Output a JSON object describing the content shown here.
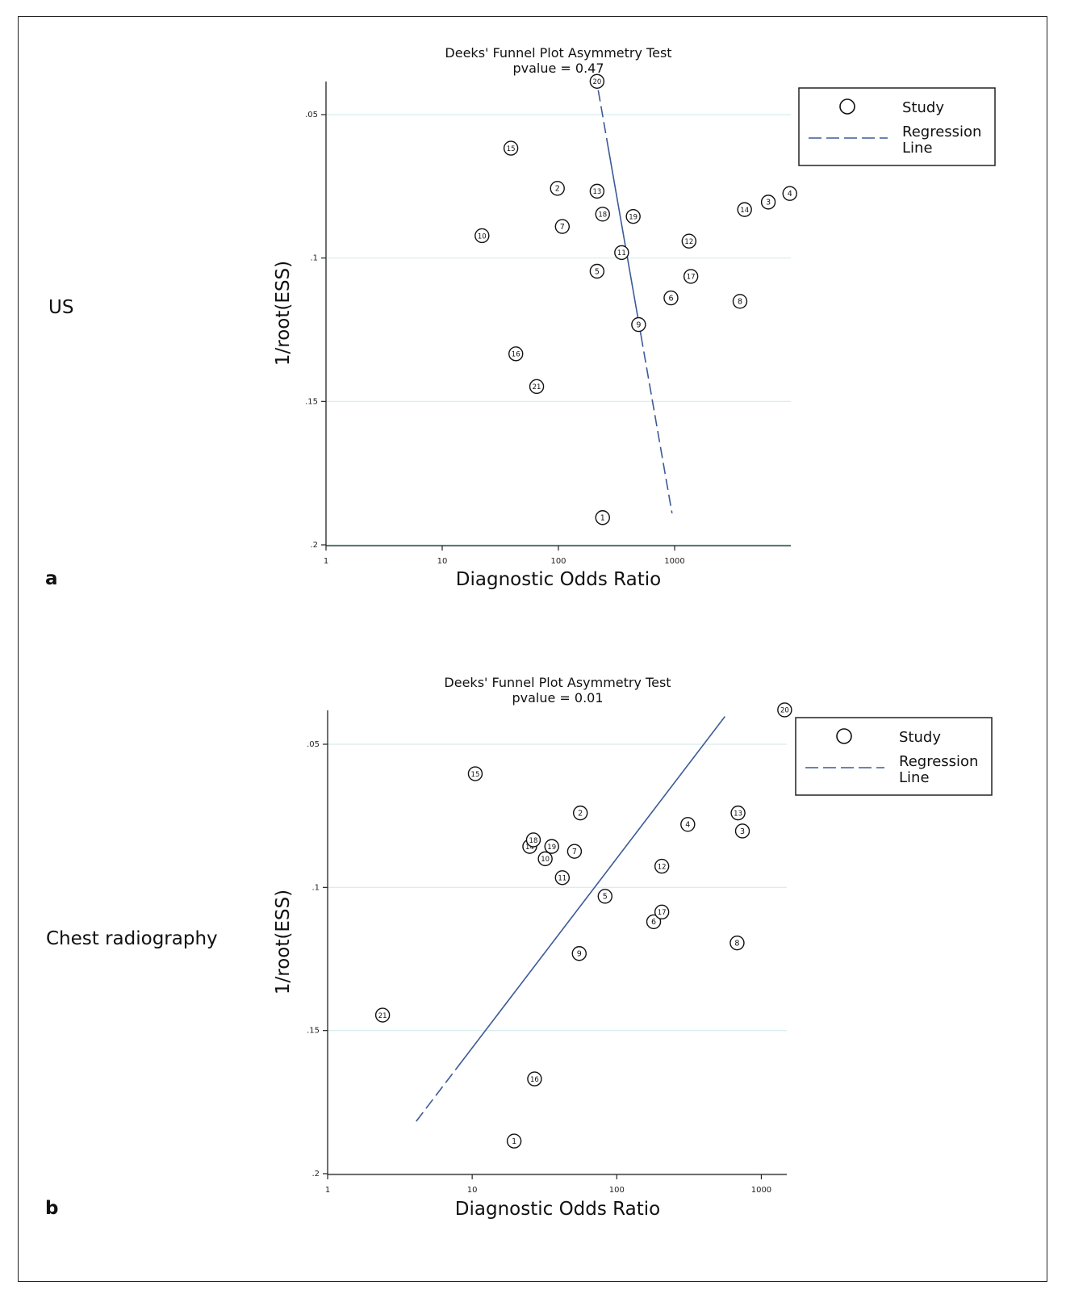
{
  "panels": [
    {
      "side_label": "US",
      "panel_letter": "a",
      "legend": {
        "marker_label": "Study",
        "line_label_1": "Regression",
        "line_label_2": "Line"
      },
      "chart_data": {
        "type": "scatter",
        "title": "Deeks' Funnel Plot Asymmetry Test",
        "subtitle": "pvalue =  0.47",
        "xlabel": "Diagnostic Odds Ratio",
        "ylabel": "1/root(ESS)",
        "x_scale": "log",
        "xlim": [
          1,
          10000
        ],
        "ylim": [
          0.2,
          0.038
        ],
        "y_inverted": true,
        "x_ticks": [
          1,
          10,
          100,
          1000
        ],
        "x_tick_labels": [
          "1",
          "10",
          "100",
          "1000"
        ],
        "y_ticks": [
          0.05,
          0.1,
          0.15,
          0.2
        ],
        "y_tick_labels": [
          ".05",
          ".1",
          ".15",
          ".2"
        ],
        "grid": "horizontal",
        "legend_position": "top-right",
        "points": [
          {
            "label": "1",
            "x": 240,
            "y": 0.1905
          },
          {
            "label": "2",
            "x": 98,
            "y": 0.0757
          },
          {
            "label": "3",
            "x": 6400,
            "y": 0.0805
          },
          {
            "label": "4",
            "x": 9800,
            "y": 0.0775
          },
          {
            "label": "5",
            "x": 215,
            "y": 0.1046
          },
          {
            "label": "6",
            "x": 930,
            "y": 0.1139
          },
          {
            "label": "7",
            "x": 108,
            "y": 0.089
          },
          {
            "label": "8",
            "x": 3650,
            "y": 0.1151
          },
          {
            "label": "9",
            "x": 490,
            "y": 0.1232
          },
          {
            "label": "10",
            "x": 22,
            "y": 0.0922
          },
          {
            "label": "11",
            "x": 350,
            "y": 0.0981
          },
          {
            "label": "12",
            "x": 1330,
            "y": 0.0941
          },
          {
            "label": "13",
            "x": 215,
            "y": 0.0767
          },
          {
            "label": "14",
            "x": 4000,
            "y": 0.0831
          },
          {
            "label": "15",
            "x": 39,
            "y": 0.0617
          },
          {
            "label": "16",
            "x": 43,
            "y": 0.1334
          },
          {
            "label": "17",
            "x": 1380,
            "y": 0.1064
          },
          {
            "label": "18",
            "x": 240,
            "y": 0.0847
          },
          {
            "label": "19",
            "x": 440,
            "y": 0.0855
          },
          {
            "label": "20",
            "x": 215,
            "y": 0.0384
          },
          {
            "label": "21",
            "x": 65,
            "y": 0.1448
          }
        ],
        "regression_line": {
          "x": [
            220,
            950
          ],
          "y": [
            0.0415,
            0.189
          ]
        }
      }
    },
    {
      "side_label": "Chest radiography",
      "panel_letter": "b",
      "legend": {
        "marker_label": "Study",
        "line_label_1": "Regression",
        "line_label_2": "Line"
      },
      "chart_data": {
        "type": "scatter",
        "title": "Deeks' Funnel Plot Asymmetry Test",
        "subtitle": "pvalue =  0.01",
        "xlabel": "Diagnostic Odds Ratio",
        "ylabel": "1/root(ESS)",
        "x_scale": "log",
        "xlim": [
          1,
          1500
        ],
        "ylim": [
          0.2,
          0.038
        ],
        "y_inverted": true,
        "x_ticks": [
          1,
          10,
          100,
          1000
        ],
        "x_tick_labels": [
          "1",
          "10",
          "100",
          "1000"
        ],
        "y_ticks": [
          0.05,
          0.1,
          0.15,
          0.2
        ],
        "y_tick_labels": [
          ".05",
          ".1",
          ".15",
          ".2"
        ],
        "grid": "horizontal",
        "legend_position": "top-right",
        "points": [
          {
            "label": "1",
            "x": 19.5,
            "y": 0.1886
          },
          {
            "label": "2",
            "x": 56,
            "y": 0.074
          },
          {
            "label": "3",
            "x": 740,
            "y": 0.0803
          },
          {
            "label": "4",
            "x": 310,
            "y": 0.078
          },
          {
            "label": "5",
            "x": 83,
            "y": 0.1031
          },
          {
            "label": "6",
            "x": 180,
            "y": 0.112
          },
          {
            "label": "7",
            "x": 51,
            "y": 0.0874
          },
          {
            "label": "8",
            "x": 680,
            "y": 0.1194
          },
          {
            "label": "9",
            "x": 55,
            "y": 0.1231
          },
          {
            "label": "10",
            "x": 32,
            "y": 0.09
          },
          {
            "label": "11",
            "x": 42,
            "y": 0.0966
          },
          {
            "label": "12",
            "x": 205,
            "y": 0.0926
          },
          {
            "label": "13",
            "x": 690,
            "y": 0.074
          },
          {
            "label": "14",
            "x": 25,
            "y": 0.0857
          },
          {
            "label": "15",
            "x": 10.5,
            "y": 0.0603
          },
          {
            "label": "16",
            "x": 27,
            "y": 0.1669
          },
          {
            "label": "17",
            "x": 205,
            "y": 0.1086
          },
          {
            "label": "18",
            "x": 26.5,
            "y": 0.0834
          },
          {
            "label": "19",
            "x": 35.5,
            "y": 0.0857
          },
          {
            "label": "20",
            "x": 1450,
            "y": 0.038
          },
          {
            "label": "21",
            "x": 2.4,
            "y": 0.1446
          }
        ],
        "regression_line": {
          "x": [
            4.1,
            560
          ],
          "y": [
            0.1817,
            0.0403
          ]
        }
      }
    }
  ]
}
